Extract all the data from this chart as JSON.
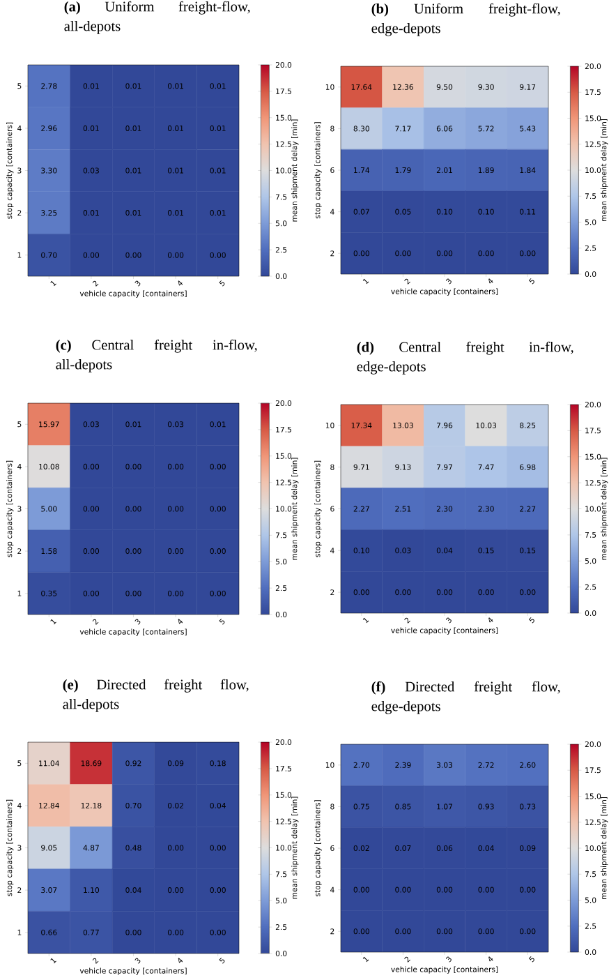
{
  "chart_data": [
    {
      "type": "heatmap",
      "title": "**(a)** Uniform freight-flow, all-depots",
      "xlabel": "vehicle capacity [containers]",
      "ylabel": "stop capacity [containers]",
      "clabel": "mean shipment delay [min]",
      "categories": [
        "1",
        "2",
        "3",
        "4",
        "5"
      ],
      "y_categories": [
        "5",
        "4",
        "3",
        "2",
        "1"
      ],
      "cells": [
        [
          2.78,
          0.01,
          0.01,
          0.01,
          0.01
        ],
        [
          2.96,
          0.01,
          0.01,
          0.01,
          0.01
        ],
        [
          3.3,
          0.03,
          0.01,
          0.01,
          0.01
        ],
        [
          3.25,
          0.01,
          0.01,
          0.01,
          0.01
        ],
        [
          0.7,
          0,
          0,
          0,
          0
        ]
      ],
      "cell_labels": [
        [
          "2.78",
          "0.01",
          "0.01",
          "0.01",
          "0.01"
        ],
        [
          "2.96",
          "0.01",
          "0.01",
          "0.01",
          "0.01"
        ],
        [
          "3.30",
          "0.03",
          "0.01",
          "0.01",
          "0.01"
        ],
        [
          "3.25",
          "0.01",
          "0.01",
          "0.01",
          "0.01"
        ],
        [
          "0.70",
          "0.00",
          "0.00",
          "0.00",
          "0.00"
        ]
      ],
      "clim": [
        0,
        20
      ],
      "cticks": [
        {
          "value": 0,
          "label": "0.0"
        },
        2.5,
        {
          "value": 5,
          "label": "5.0"
        },
        7.5,
        {
          "value": 10,
          "label": "10.0"
        },
        12.5,
        {
          "value": 15,
          "label": "15.0"
        },
        17.5,
        {
          "value": 20,
          "label": "20.0"
        }
      ]
    },
    {
      "type": "heatmap",
      "title": "**(b)** Uniform freight-flow, edge-depots",
      "xlabel": "vehicle capacity [containers]",
      "ylabel": "stop capacity [containers]",
      "clabel": "mean shipment delay [min]",
      "categories": [
        "1",
        "2",
        "3",
        "4",
        "5"
      ],
      "y_categories": [
        "10",
        "8",
        "6",
        "4",
        "2"
      ],
      "cells": [
        [
          17.64,
          12.36,
          9.5,
          9.3,
          9.17
        ],
        [
          8.3,
          7.17,
          6.06,
          5.72,
          5.43
        ],
        [
          1.74,
          1.79,
          2.01,
          1.89,
          1.84
        ],
        [
          0.07,
          0.05,
          0.1,
          0.1,
          0.11
        ],
        [
          0,
          0,
          0,
          0,
          0
        ]
      ],
      "cell_labels": [
        [
          "17.64",
          "12.36",
          "9.50",
          "9.30",
          "9.17"
        ],
        [
          "8.30",
          "7.17",
          "6.06",
          "5.72",
          "5.43"
        ],
        [
          "1.74",
          "1.79",
          "2.01",
          "1.89",
          "1.84"
        ],
        [
          "0.07",
          "0.05",
          "0.10",
          "0.10",
          "0.11"
        ],
        [
          "0.00",
          "0.00",
          "0.00",
          "0.00",
          "0.00"
        ]
      ],
      "clim": [
        0,
        20
      ],
      "cticks": [
        {
          "value": 0,
          "label": "0.0"
        },
        2.5,
        {
          "value": 5,
          "label": "5.0"
        },
        7.5,
        {
          "value": 10,
          "label": "10.0"
        },
        12.5,
        {
          "value": 15,
          "label": "15.0"
        },
        17.5,
        {
          "value": 20,
          "label": "20.0"
        }
      ]
    },
    {
      "type": "heatmap",
      "title": "**(c)** Central freight in-flow, all-depots",
      "xlabel": "vehicle capacity [containers]",
      "ylabel": "stop capacity [containers]",
      "clabel": "mean shipment delay [min]",
      "categories": [
        "1",
        "2",
        "3",
        "4",
        "5"
      ],
      "y_categories": [
        "5",
        "4",
        "3",
        "2",
        "1"
      ],
      "cells": [
        [
          15.97,
          0.03,
          0.01,
          0.03,
          0.01
        ],
        [
          10.08,
          0,
          0,
          0,
          0
        ],
        [
          5,
          0,
          0,
          0,
          0
        ],
        [
          1.58,
          0,
          0,
          0,
          0
        ],
        [
          0.35,
          0,
          0,
          0,
          0
        ]
      ],
      "cell_labels": [
        [
          "15.97",
          "0.03",
          "0.01",
          "0.03",
          "0.01"
        ],
        [
          "10.08",
          "0.00",
          "0.00",
          "0.00",
          "0.00"
        ],
        [
          "5.00",
          "0.00",
          "0.00",
          "0.00",
          "0.00"
        ],
        [
          "1.58",
          "0.00",
          "0.00",
          "0.00",
          "0.00"
        ],
        [
          "0.35",
          "0.00",
          "0.00",
          "0.00",
          "0.00"
        ]
      ],
      "clim": [
        0,
        20
      ],
      "cticks": [
        {
          "value": 0,
          "label": "0.0"
        },
        2.5,
        {
          "value": 5,
          "label": "5.0"
        },
        7.5,
        {
          "value": 10,
          "label": "10.0"
        },
        12.5,
        {
          "value": 15,
          "label": "15.0"
        },
        17.5,
        {
          "value": 20,
          "label": "20.0"
        }
      ]
    },
    {
      "type": "heatmap",
      "title": "**(d)** Central freight in-flow, edge-depots",
      "xlabel": "vehicle capacity [containers]",
      "ylabel": "stop capacity [containers]",
      "clabel": "mean shipment delay [min]",
      "categories": [
        "1",
        "2",
        "3",
        "4",
        "5"
      ],
      "y_categories": [
        "10",
        "8",
        "6",
        "4",
        "2"
      ],
      "cells": [
        [
          17.34,
          13.03,
          7.96,
          10.03,
          8.25
        ],
        [
          9.71,
          9.13,
          7.97,
          7.47,
          6.98
        ],
        [
          2.27,
          2.51,
          2.3,
          2.3,
          2.27
        ],
        [
          0.1,
          0.03,
          0.04,
          0.15,
          0.15
        ],
        [
          0,
          0,
          0,
          0,
          0
        ]
      ],
      "cell_labels": [
        [
          "17.34",
          "13.03",
          "7.96",
          "10.03",
          "8.25"
        ],
        [
          "9.71",
          "9.13",
          "7.97",
          "7.47",
          "6.98"
        ],
        [
          "2.27",
          "2.51",
          "2.30",
          "2.30",
          "2.27"
        ],
        [
          "0.10",
          "0.03",
          "0.04",
          "0.15",
          "0.15"
        ],
        [
          "0.00",
          "0.00",
          "0.00",
          "0.00",
          "0.00"
        ]
      ],
      "clim": [
        0,
        20
      ],
      "cticks": [
        {
          "value": 0,
          "label": "0.0"
        },
        2.5,
        {
          "value": 5,
          "label": "5.0"
        },
        7.5,
        {
          "value": 10,
          "label": "10.0"
        },
        12.5,
        {
          "value": 15,
          "label": "15.0"
        },
        17.5,
        {
          "value": 20,
          "label": "20.0"
        }
      ]
    },
    {
      "type": "heatmap",
      "title": "**(e)** Directed freight flow, all-depots",
      "xlabel": "vehicle capacity [containers]",
      "ylabel": "stop capacity [containers]",
      "clabel": "mean shipment delay [min]",
      "categories": [
        "1",
        "2",
        "3",
        "4",
        "5"
      ],
      "y_categories": [
        "5",
        "4",
        "3",
        "2",
        "1"
      ],
      "cells": [
        [
          11.04,
          18.69,
          0.92,
          0.09,
          0.18
        ],
        [
          12.84,
          12.18,
          0.7,
          0.02,
          0.04
        ],
        [
          9.05,
          4.87,
          0.48,
          0,
          0
        ],
        [
          3.07,
          1.1,
          0.04,
          0,
          0
        ],
        [
          0.66,
          0.77,
          0,
          0,
          0
        ]
      ],
      "cell_labels": [
        [
          "11.04",
          "18.69",
          "0.92",
          "0.09",
          "0.18"
        ],
        [
          "12.84",
          "12.18",
          "0.70",
          "0.02",
          "0.04"
        ],
        [
          "9.05",
          "4.87",
          "0.48",
          "0.00",
          "0.00"
        ],
        [
          "3.07",
          "1.10",
          "0.04",
          "0.00",
          "0.00"
        ],
        [
          "0.66",
          "0.77",
          "0.00",
          "0.00",
          "0.00"
        ]
      ],
      "clim": [
        0,
        20
      ],
      "cticks": [
        {
          "value": 0,
          "label": "0.0"
        },
        2.5,
        {
          "value": 5,
          "label": "5.0"
        },
        7.5,
        {
          "value": 10,
          "label": "10.0"
        },
        12.5,
        {
          "value": 15,
          "label": "15.0"
        },
        17.5,
        {
          "value": 20,
          "label": "20.0"
        }
      ]
    },
    {
      "type": "heatmap",
      "title": "**(f)** Directed freight flow, edge-depots",
      "xlabel": "vehicle capacity [containers]",
      "ylabel": "stop capacity [containers]",
      "clabel": "mean shipment delay [min]",
      "categories": [
        "1",
        "2",
        "3",
        "4",
        "5"
      ],
      "y_categories": [
        "10",
        "8",
        "6",
        "4",
        "2"
      ],
      "cells": [
        [
          2.7,
          2.39,
          3.03,
          2.72,
          2.6
        ],
        [
          0.75,
          0.85,
          1.07,
          0.93,
          0.73
        ],
        [
          0.02,
          0.07,
          0.06,
          0.04,
          0.09
        ],
        [
          0,
          0,
          0,
          0,
          0
        ],
        [
          0,
          0,
          0,
          0,
          0
        ]
      ],
      "cell_labels": [
        [
          "2.70",
          "2.39",
          "3.03",
          "2.72",
          "2.60"
        ],
        [
          "0.75",
          "0.85",
          "1.07",
          "0.93",
          "0.73"
        ],
        [
          "0.02",
          "0.07",
          "0.06",
          "0.04",
          "0.09"
        ],
        [
          "0.00",
          "0.00",
          "0.00",
          "0.00",
          "0.00"
        ],
        [
          "0.00",
          "0.00",
          "0.00",
          "0.00",
          "0.00"
        ]
      ],
      "clim": [
        0,
        20
      ],
      "cticks": [
        {
          "value": 0,
          "label": "0.0"
        },
        2.5,
        {
          "value": 5,
          "label": "5.0"
        },
        7.5,
        {
          "value": 10,
          "label": "10.0"
        },
        12.5,
        {
          "value": 15,
          "label": "15.0"
        },
        17.5,
        {
          "value": 20,
          "label": "20.0"
        }
      ]
    }
  ]
}
